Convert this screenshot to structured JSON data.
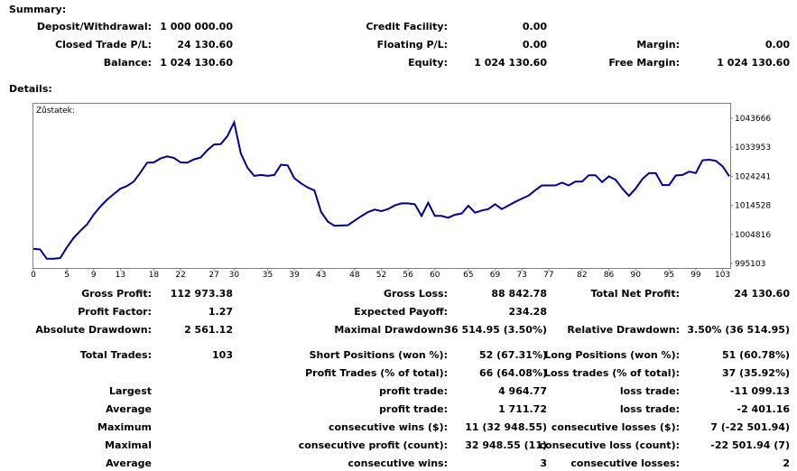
{
  "summary": {
    "heading": "Summary:",
    "deposit_label": "Deposit/Withdrawal:",
    "deposit_value": "1 000 000.00",
    "closed_label": "Closed Trade P/L:",
    "closed_value": "24 130.60",
    "balance_label": "Balance:",
    "balance_value": "1 024 130.60",
    "credit_label": "Credit Facility:",
    "credit_value": "0.00",
    "floating_label": "Floating P/L:",
    "floating_value": "0.00",
    "equity_label": "Equity:",
    "equity_value": "1 024 130.60",
    "margin_label": "Margin:",
    "margin_value": "0.00",
    "free_margin_label": "Free Margin:",
    "free_margin_value": "1 024 130.60"
  },
  "details": {
    "heading": "Details:",
    "rows": [
      {
        "l1": "Gross Profit:",
        "v1": "112 973.38",
        "l2": "Gross Loss:",
        "v2": "88 842.78",
        "l3": "Total Net Profit:",
        "v3": "24 130.60"
      },
      {
        "l1": "Profit Factor:",
        "v1": "1.27",
        "l2": "Expected Payoff:",
        "v2": "234.28",
        "l3": "",
        "v3": ""
      },
      {
        "l1": "Absolute Drawdown:",
        "v1": "2 561.12",
        "l2": "Maximal Drawdown:",
        "v2": "36 514.95 (3.50%)",
        "l3": "Relative Drawdown:",
        "v3": "3.50% (36 514.95)"
      },
      {
        "l1": "Total Trades:",
        "v1": "103",
        "l2": "Short Positions (won %):",
        "v2": "52 (67.31%)",
        "l3": "Long Positions (won %):",
        "v3": "51 (60.78%)"
      },
      {
        "l1": "",
        "v1": "",
        "l2": "Profit Trades (% of total):",
        "v2": "66 (64.08%)",
        "l3": "Loss trades (% of total):",
        "v3": "37 (35.92%)"
      },
      {
        "l1": "Largest",
        "v1": "",
        "l2": "profit trade:",
        "v2": "4 964.77",
        "l3": "loss trade:",
        "v3": "-11 099.13"
      },
      {
        "l1": "Average",
        "v1": "",
        "l2": "profit trade:",
        "v2": "1 711.72",
        "l3": "loss trade:",
        "v3": "-2 401.16"
      },
      {
        "l1": "Maximum",
        "v1": "",
        "l2": "consecutive wins ($):",
        "v2": "11 (32 948.55)",
        "l3": "consecutive losses ($):",
        "v3": "7 (-22 501.94)"
      },
      {
        "l1": "Maximal",
        "v1": "",
        "l2": "consecutive profit (count):",
        "v2": "32 948.55 (11)",
        "l3": "consecutive loss (count):",
        "v3": "-22 501.94 (7)"
      },
      {
        "l1": "Average",
        "v1": "",
        "l2": "consecutive wins:",
        "v2": "3",
        "l3": "consecutive losses:",
        "v3": "2"
      }
    ]
  },
  "chart_data": {
    "type": "line",
    "title": "Zůstatek:",
    "line_color": "#00008b",
    "x_ticks": [
      0,
      5,
      9,
      13,
      18,
      22,
      27,
      30,
      35,
      39,
      43,
      48,
      52,
      56,
      60,
      65,
      69,
      73,
      77,
      82,
      86,
      90,
      95,
      99,
      103
    ],
    "y_ticks": [
      "1043666",
      "1033953",
      "1024241",
      "1014528",
      "1004816",
      "995103"
    ],
    "y_tick_values": [
      1043666,
      1033953,
      1024241,
      1014528,
      1004816,
      995103
    ],
    "xlim": [
      0,
      104
    ],
    "ylim": [
      995103,
      1043666
    ],
    "x": [
      0,
      1,
      2,
      3,
      4,
      5,
      6,
      7,
      8,
      9,
      10,
      11,
      12,
      13,
      14,
      15,
      16,
      17,
      18,
      19,
      20,
      21,
      22,
      23,
      24,
      25,
      26,
      27,
      28,
      29,
      30,
      31,
      32,
      33,
      34,
      35,
      36,
      37,
      38,
      39,
      40,
      41,
      42,
      43,
      44,
      45,
      46,
      47,
      48,
      49,
      50,
      51,
      52,
      53,
      54,
      55,
      56,
      57,
      58,
      59,
      60,
      61,
      62,
      63,
      64,
      65,
      66,
      67,
      68,
      69,
      70,
      71,
      72,
      73,
      74,
      75,
      76,
      77,
      78,
      79,
      80,
      81,
      82,
      83,
      84,
      85,
      86,
      87,
      88,
      89,
      90,
      91,
      92,
      93,
      94,
      95,
      96,
      97,
      98,
      99,
      100,
      101,
      102,
      103,
      104
    ],
    "y": [
      1000000,
      999800,
      996700,
      996700,
      996900,
      1000500,
      1003600,
      1006000,
      1008100,
      1011400,
      1014100,
      1016400,
      1018300,
      1020100,
      1021000,
      1022500,
      1025500,
      1028800,
      1028900,
      1030200,
      1030900,
      1030400,
      1028900,
      1028800,
      1029900,
      1030500,
      1033000,
      1034900,
      1035000,
      1037700,
      1042300,
      1031900,
      1027100,
      1024400,
      1024700,
      1024400,
      1024700,
      1028100,
      1027900,
      1023600,
      1021900,
      1020500,
      1019500,
      1012300,
      1009100,
      1007700,
      1007800,
      1007900,
      1009400,
      1010900,
      1012300,
      1013100,
      1012600,
      1013300,
      1014500,
      1015200,
      1015200,
      1014900,
      1011000,
      1015400,
      1011000,
      1011000,
      1010400,
      1011400,
      1011800,
      1014400,
      1012100,
      1012800,
      1013300,
      1014900,
      1013300,
      1014500,
      1015700,
      1016800,
      1017800,
      1019600,
      1021200,
      1021200,
      1021200,
      1022100,
      1021200,
      1022500,
      1022500,
      1024600,
      1024600,
      1022300,
      1024200,
      1023100,
      1020200,
      1017700,
      1020100,
      1023300,
      1025300,
      1025300,
      1021300,
      1021300,
      1024500,
      1024700,
      1025800,
      1025300,
      1029600,
      1029800,
      1029400,
      1027600,
      1024241
    ]
  }
}
